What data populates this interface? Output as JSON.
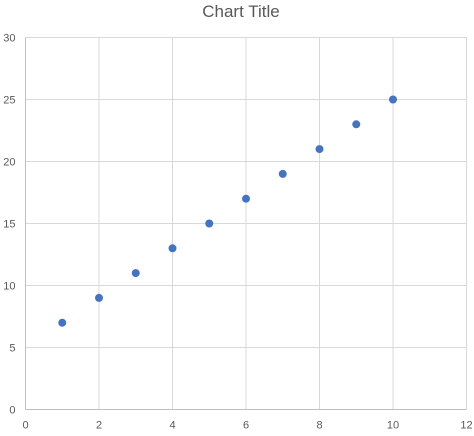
{
  "chart_data": {
    "type": "scatter",
    "title": "Chart Title",
    "xlabel": "",
    "ylabel": "",
    "xlim": [
      0,
      12
    ],
    "ylim": [
      0,
      30
    ],
    "x_ticks": [
      0,
      2,
      4,
      6,
      8,
      10,
      12
    ],
    "y_ticks": [
      0,
      5,
      10,
      15,
      20,
      25,
      30
    ],
    "grid": true,
    "legend": "none",
    "marker_color": "#4472C4",
    "grid_color": "#D9D9D9",
    "axis_color": "#BFBFBF",
    "text_color": "#595959",
    "series": [
      {
        "x": [
          1,
          2,
          3,
          4,
          5,
          6,
          7,
          8,
          9,
          10
        ],
        "y": [
          7,
          9,
          11,
          13,
          15,
          17,
          19,
          21,
          23,
          25
        ]
      }
    ]
  }
}
